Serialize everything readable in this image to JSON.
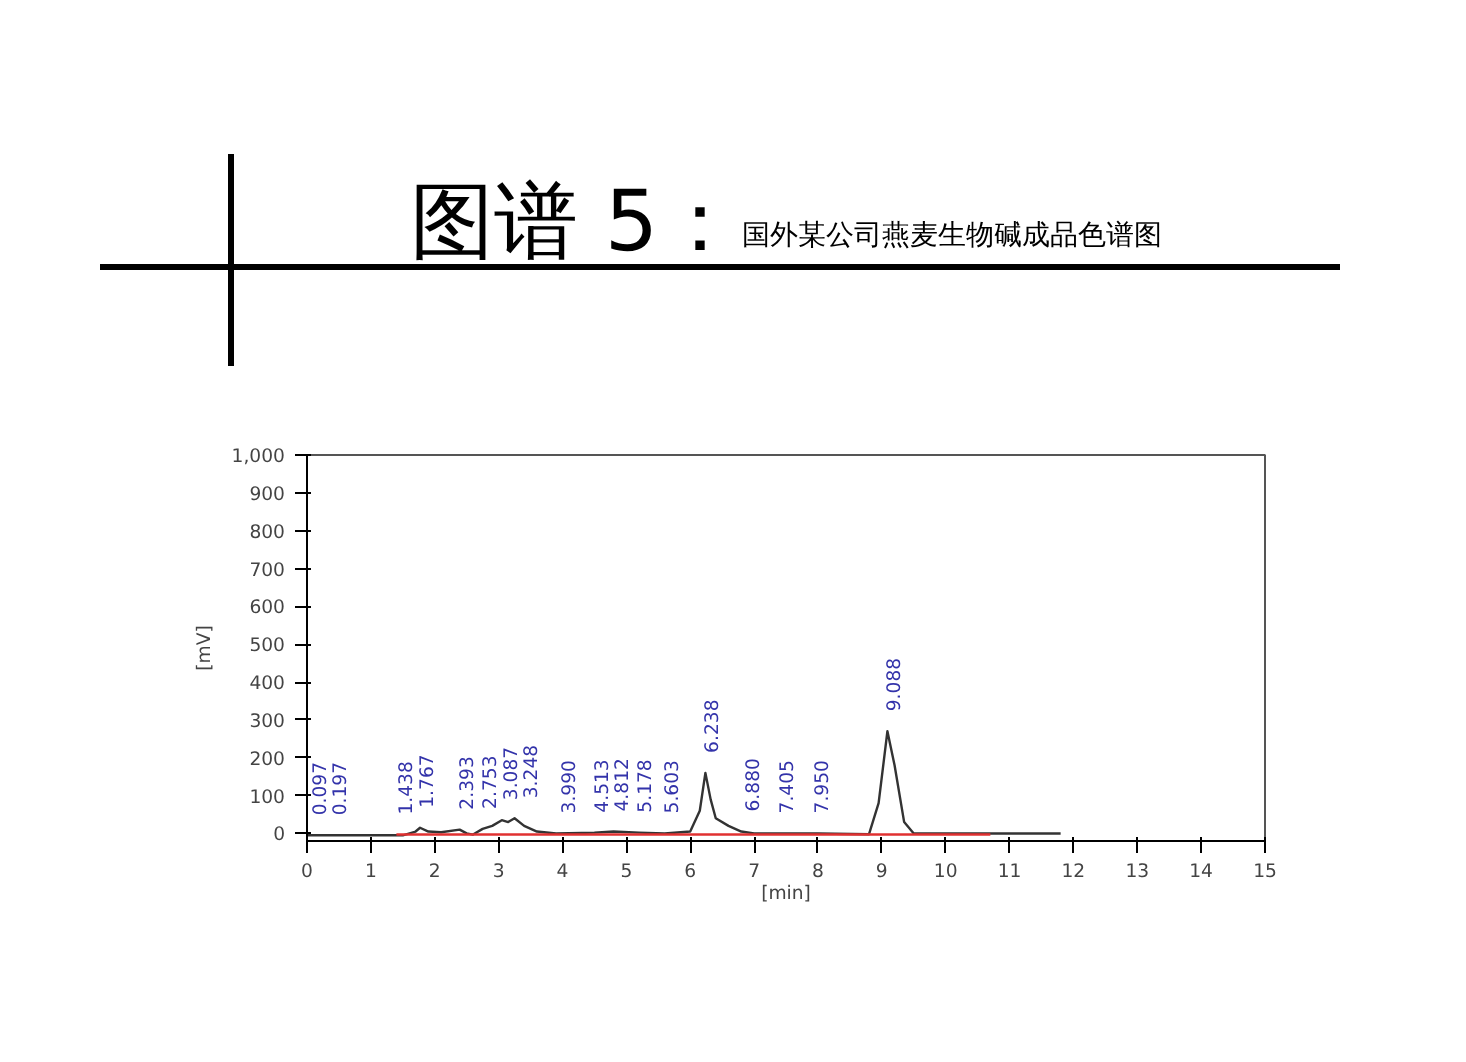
{
  "chart_data": {
    "type": "line",
    "title": "图谱 5：",
    "subtitle": "国外某公司燕麦生物碱成品色谱图",
    "xlabel": "[min]",
    "ylabel": "[mV]",
    "xlim": [
      0,
      15
    ],
    "xticks": [
      0,
      1,
      2,
      3,
      4,
      5,
      6,
      7,
      8,
      9,
      10,
      11,
      12,
      13,
      14,
      15
    ],
    "ylim": [
      -20,
      1000
    ],
    "yticks": [
      0,
      100,
      200,
      300,
      400,
      500,
      600,
      700,
      800,
      900,
      {
        "value": 1000,
        "label": "1,000"
      }
    ],
    "grid": false,
    "marker": "none",
    "line_style": "solid",
    "series": [
      {
        "color": "#333333",
        "x": [
          0,
          0.5,
          1.0,
          1.5,
          1.7,
          1.77,
          1.9,
          2.1,
          2.39,
          2.5,
          2.6,
          2.75,
          2.9,
          3.05,
          3.15,
          3.25,
          3.4,
          3.6,
          3.9,
          4.5,
          4.8,
          5.2,
          5.6,
          6.0,
          6.15,
          6.238,
          6.32,
          6.4,
          6.6,
          6.8,
          7.0,
          8.0,
          8.8,
          8.95,
          9.088,
          9.2,
          9.35,
          9.5,
          10.0,
          11.0,
          11.8
        ],
        "values": [
          -5,
          -5,
          -5,
          -5,
          5,
          15,
          5,
          3,
          10,
          0,
          -3,
          12,
          20,
          35,
          30,
          40,
          20,
          5,
          0,
          2,
          5,
          2,
          0,
          5,
          60,
          160,
          90,
          40,
          20,
          5,
          0,
          0,
          -2,
          80,
          270,
          180,
          30,
          0,
          0,
          0,
          0
        ]
      },
      {
        "color": "#e03030",
        "x": [
          1.4,
          10.7
        ],
        "values": [
          -3,
          -3
        ]
      }
    ],
    "annotations": [
      {
        "text": "0.097",
        "x": 0.097,
        "y": -5
      },
      {
        "text": "0.197",
        "x": 0.197,
        "y": -5
      },
      {
        "text": "1.438",
        "x": 1.438,
        "y": -3
      },
      {
        "text": "1.767",
        "x": 1.767,
        "y": 15
      },
      {
        "text": "2.393",
        "x": 2.393,
        "y": 10
      },
      {
        "text": "2.753",
        "x": 2.753,
        "y": 12
      },
      {
        "text": "3.087",
        "x": 3.087,
        "y": 35
      },
      {
        "text": "3.248",
        "x": 3.248,
        "y": 40
      },
      {
        "text": "3.990",
        "x": 3.99,
        "y": 0
      },
      {
        "text": "4.513",
        "x": 4.513,
        "y": 2
      },
      {
        "text": "4.812",
        "x": 4.812,
        "y": 5
      },
      {
        "text": "5.178",
        "x": 5.178,
        "y": 2
      },
      {
        "text": "5.603",
        "x": 5.603,
        "y": 0
      },
      {
        "text": "6.238",
        "x": 6.238,
        "y": 160
      },
      {
        "text": "6.880",
        "x": 6.88,
        "y": 5
      },
      {
        "text": "7.405",
        "x": 7.405,
        "y": 0
      },
      {
        "text": "7.950",
        "x": 7.95,
        "y": 0
      },
      {
        "text": "9.088",
        "x": 9.088,
        "y": 270
      }
    ]
  }
}
